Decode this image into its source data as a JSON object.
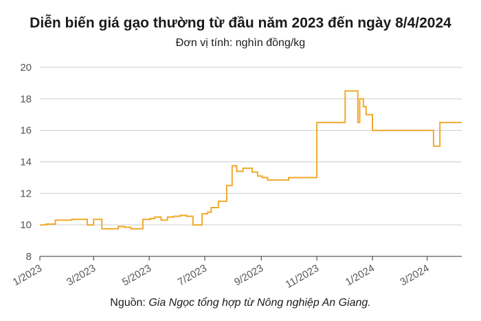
{
  "chart_data": {
    "type": "line",
    "title": "Diễn biến giá gạo thường từ đầu năm 2023 đến ngày 8/4/2024",
    "subtitle": "Đơn vị tính: nghìn đồng/kg",
    "source_prefix": "Nguồn: ",
    "source_text": "Gia Ngọc tổng hợp từ Nông nghiệp An Giang.",
    "xlabel": "",
    "ylabel": "",
    "ylim": [
      8,
      20
    ],
    "yticks": [
      "8",
      "10",
      "12",
      "14",
      "16",
      "18",
      "20"
    ],
    "xticks": [
      "1/2023",
      "3/2023",
      "5/2023",
      "7/2023",
      "9/2023",
      "11/2023",
      "1/2024",
      "3/2024"
    ],
    "grid": true,
    "line_color": "#f0a92a",
    "series": [
      {
        "x": [
          "2023-01-01",
          "2023-01-08",
          "2023-01-18",
          "2023-01-25",
          "2023-02-05",
          "2023-02-12",
          "2023-02-22",
          "2023-02-28",
          "2023-03-01",
          "2023-03-06",
          "2023-03-10",
          "2023-03-24",
          "2023-03-28",
          "2023-04-04",
          "2023-04-11",
          "2023-04-18",
          "2023-04-24",
          "2023-04-30",
          "2023-05-02",
          "2023-05-07",
          "2023-05-14",
          "2023-05-21",
          "2023-05-28",
          "2023-06-04",
          "2023-06-11",
          "2023-06-18",
          "2023-06-25",
          "2023-06-28",
          "2023-07-04",
          "2023-07-08",
          "2023-07-16",
          "2023-07-25",
          "2023-07-31",
          "2023-08-05",
          "2023-08-12",
          "2023-08-18",
          "2023-08-22",
          "2023-08-28",
          "2023-09-02",
          "2023-09-08",
          "2023-09-15",
          "2023-09-22",
          "2023-10-01",
          "2023-10-08",
          "2023-10-15",
          "2023-10-29",
          "2023-11-01",
          "2023-11-20",
          "2023-12-02",
          "2023-12-10",
          "2023-12-16",
          "2023-12-18",
          "2023-12-22",
          "2023-12-25",
          "2024-01-01",
          "2024-01-15",
          "2024-02-15",
          "2024-02-17",
          "2024-03-01",
          "2024-03-05",
          "2024-03-08",
          "2024-03-10",
          "2024-03-15",
          "2024-04-08"
        ],
        "y": [
          10.0,
          10.05,
          10.3,
          10.3,
          10.35,
          10.35,
          10.0,
          10.0,
          10.35,
          10.35,
          9.75,
          9.75,
          9.9,
          9.85,
          9.75,
          9.75,
          10.35,
          10.35,
          10.4,
          10.5,
          10.3,
          10.5,
          10.55,
          10.6,
          10.55,
          10.0,
          10.0,
          10.7,
          10.8,
          11.1,
          11.5,
          12.5,
          13.75,
          13.4,
          13.6,
          13.6,
          13.35,
          13.1,
          13.0,
          12.85,
          12.85,
          12.85,
          13.0,
          13.0,
          13.0,
          13.0,
          16.5,
          16.5,
          18.5,
          18.5,
          16.5,
          18.0,
          17.5,
          17.0,
          16.0,
          16.0,
          16.0,
          16.0,
          16.0,
          16.0,
          15.0,
          15.0,
          16.5,
          16.5
        ]
      }
    ]
  }
}
